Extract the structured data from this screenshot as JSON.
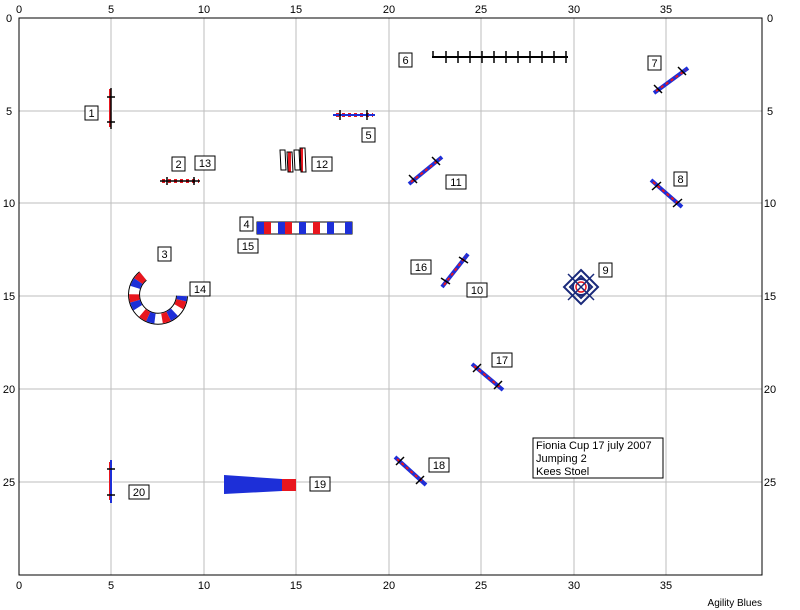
{
  "course": {
    "x_ticks": [
      "0",
      "5",
      "10",
      "15",
      "20",
      "25",
      "30",
      "35"
    ],
    "y_ticks": [
      "0",
      "5",
      "10",
      "15",
      "20",
      "25"
    ],
    "numbers": [
      "1",
      "2",
      "13",
      "3",
      "14",
      "4",
      "15",
      "5",
      "6",
      "7",
      "8",
      "9",
      "10",
      "16",
      "11",
      "12",
      "17",
      "18",
      "19",
      "20"
    ],
    "info": [
      "Fionia Cup 17 july 2007",
      "Jumping 2",
      "Kees Stoel"
    ],
    "credit": "Agility Blues"
  },
  "colors": {
    "red": "#e8161e",
    "blue": "#1d2fd8",
    "grid": "#bdbdbd",
    "navy": "#1a2a7a"
  }
}
